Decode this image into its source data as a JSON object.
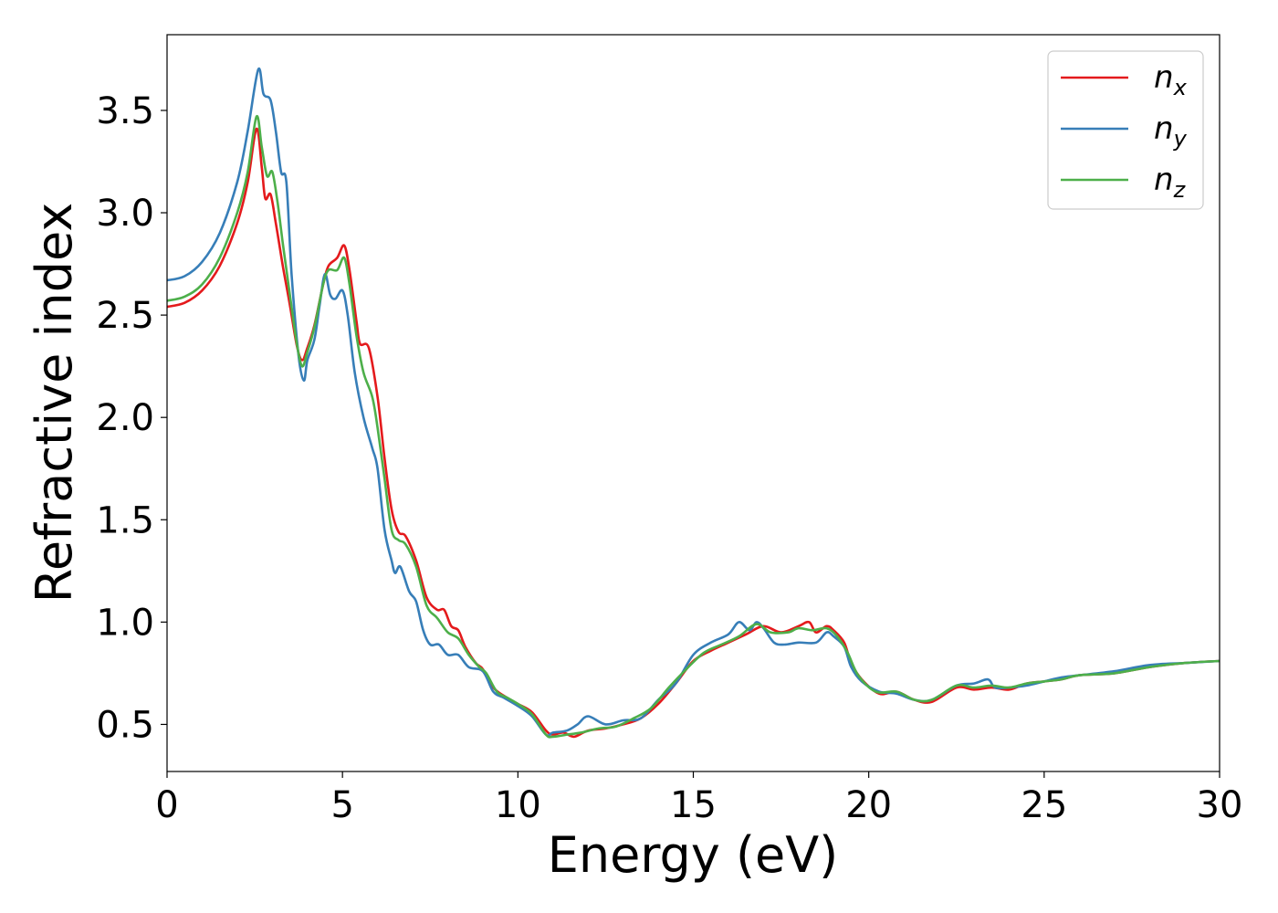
{
  "chart_data": {
    "type": "line",
    "xlabel": "Energy (eV)",
    "ylabel": "Refractive index",
    "xlim": [
      0,
      30
    ],
    "ylim": [
      0.27,
      3.87
    ],
    "xticks": [
      0,
      5,
      10,
      15,
      20,
      25,
      30
    ],
    "yticks": [
      0.5,
      1.0,
      1.5,
      2.0,
      2.5,
      3.0,
      3.5
    ],
    "xtick_labels": [
      "0",
      "5",
      "10",
      "15",
      "20",
      "25",
      "30"
    ],
    "ytick_labels": [
      "0.5",
      "1.0",
      "1.5",
      "2.0",
      "2.5",
      "3.0",
      "3.5"
    ],
    "grid": false,
    "legend_position": "top-right",
    "series": [
      {
        "name": "n_x",
        "label_base": "n",
        "label_sub": "x",
        "color": "#e41a1c",
        "points": [
          [
            0,
            2.54
          ],
          [
            0.5,
            2.56
          ],
          [
            1.0,
            2.62
          ],
          [
            1.5,
            2.74
          ],
          [
            2.0,
            2.95
          ],
          [
            2.3,
            3.15
          ],
          [
            2.55,
            3.41
          ],
          [
            2.7,
            3.22
          ],
          [
            2.8,
            3.07
          ],
          [
            2.95,
            3.09
          ],
          [
            3.1,
            2.95
          ],
          [
            3.3,
            2.74
          ],
          [
            3.5,
            2.55
          ],
          [
            3.7,
            2.35
          ],
          [
            3.85,
            2.28
          ],
          [
            4.0,
            2.34
          ],
          [
            4.2,
            2.45
          ],
          [
            4.45,
            2.65
          ],
          [
            4.6,
            2.74
          ],
          [
            4.85,
            2.78
          ],
          [
            5.05,
            2.84
          ],
          [
            5.2,
            2.72
          ],
          [
            5.4,
            2.47
          ],
          [
            5.5,
            2.36
          ],
          [
            5.75,
            2.34
          ],
          [
            6.0,
            2.1
          ],
          [
            6.2,
            1.8
          ],
          [
            6.4,
            1.55
          ],
          [
            6.6,
            1.44
          ],
          [
            6.8,
            1.42
          ],
          [
            7.1,
            1.3
          ],
          [
            7.4,
            1.12
          ],
          [
            7.7,
            1.06
          ],
          [
            7.9,
            1.06
          ],
          [
            8.1,
            0.98
          ],
          [
            8.3,
            0.96
          ],
          [
            8.5,
            0.88
          ],
          [
            8.8,
            0.8
          ],
          [
            9.0,
            0.77
          ],
          [
            9.3,
            0.68
          ],
          [
            9.6,
            0.64
          ],
          [
            10.0,
            0.6
          ],
          [
            10.4,
            0.56
          ],
          [
            10.8,
            0.47
          ],
          [
            11.0,
            0.45
          ],
          [
            11.3,
            0.46
          ],
          [
            11.6,
            0.44
          ],
          [
            12.0,
            0.47
          ],
          [
            12.5,
            0.48
          ],
          [
            13.0,
            0.5
          ],
          [
            13.5,
            0.53
          ],
          [
            14.0,
            0.6
          ],
          [
            14.5,
            0.7
          ],
          [
            15.0,
            0.81
          ],
          [
            15.5,
            0.86
          ],
          [
            16.0,
            0.9
          ],
          [
            16.5,
            0.94
          ],
          [
            17.0,
            0.98
          ],
          [
            17.5,
            0.95
          ],
          [
            18.0,
            0.98
          ],
          [
            18.3,
            1.0
          ],
          [
            18.5,
            0.95
          ],
          [
            18.8,
            0.98
          ],
          [
            19.0,
            0.96
          ],
          [
            19.3,
            0.9
          ],
          [
            19.5,
            0.8
          ],
          [
            19.8,
            0.72
          ],
          [
            20.3,
            0.65
          ],
          [
            20.8,
            0.66
          ],
          [
            21.3,
            0.62
          ],
          [
            21.8,
            0.61
          ],
          [
            22.5,
            0.68
          ],
          [
            23.0,
            0.67
          ],
          [
            23.5,
            0.68
          ],
          [
            24.0,
            0.67
          ],
          [
            24.5,
            0.7
          ],
          [
            25.0,
            0.71
          ],
          [
            25.5,
            0.72
          ],
          [
            26.0,
            0.74
          ],
          [
            27.0,
            0.75
          ],
          [
            28.0,
            0.78
          ],
          [
            29.0,
            0.8
          ],
          [
            30.0,
            0.81
          ]
        ]
      },
      {
        "name": "n_y",
        "label_base": "n",
        "label_sub": "y",
        "color": "#377eb8",
        "points": [
          [
            0,
            2.67
          ],
          [
            0.5,
            2.69
          ],
          [
            1.0,
            2.76
          ],
          [
            1.5,
            2.9
          ],
          [
            2.0,
            3.15
          ],
          [
            2.3,
            3.4
          ],
          [
            2.6,
            3.7
          ],
          [
            2.75,
            3.58
          ],
          [
            2.95,
            3.55
          ],
          [
            3.1,
            3.4
          ],
          [
            3.25,
            3.2
          ],
          [
            3.4,
            3.15
          ],
          [
            3.55,
            2.7
          ],
          [
            3.75,
            2.3
          ],
          [
            3.9,
            2.18
          ],
          [
            4.0,
            2.28
          ],
          [
            4.2,
            2.38
          ],
          [
            4.35,
            2.55
          ],
          [
            4.5,
            2.7
          ],
          [
            4.65,
            2.6
          ],
          [
            4.8,
            2.58
          ],
          [
            5.0,
            2.62
          ],
          [
            5.15,
            2.5
          ],
          [
            5.35,
            2.22
          ],
          [
            5.6,
            2.0
          ],
          [
            5.85,
            1.85
          ],
          [
            6.0,
            1.75
          ],
          [
            6.2,
            1.45
          ],
          [
            6.4,
            1.3
          ],
          [
            6.5,
            1.24
          ],
          [
            6.65,
            1.27
          ],
          [
            6.9,
            1.15
          ],
          [
            7.1,
            1.1
          ],
          [
            7.3,
            0.96
          ],
          [
            7.5,
            0.89
          ],
          [
            7.75,
            0.89
          ],
          [
            8.0,
            0.84
          ],
          [
            8.3,
            0.84
          ],
          [
            8.6,
            0.78
          ],
          [
            9.0,
            0.76
          ],
          [
            9.3,
            0.66
          ],
          [
            9.6,
            0.63
          ],
          [
            10.0,
            0.59
          ],
          [
            10.4,
            0.54
          ],
          [
            10.8,
            0.45
          ],
          [
            11.0,
            0.46
          ],
          [
            11.4,
            0.47
          ],
          [
            11.7,
            0.5
          ],
          [
            12.0,
            0.54
          ],
          [
            12.5,
            0.5
          ],
          [
            13.0,
            0.52
          ],
          [
            13.5,
            0.53
          ],
          [
            14.0,
            0.62
          ],
          [
            14.5,
            0.7
          ],
          [
            15.0,
            0.84
          ],
          [
            15.5,
            0.9
          ],
          [
            16.0,
            0.94
          ],
          [
            16.3,
            1.0
          ],
          [
            16.6,
            0.96
          ],
          [
            16.8,
            1.0
          ],
          [
            17.0,
            0.97
          ],
          [
            17.3,
            0.9
          ],
          [
            17.6,
            0.89
          ],
          [
            18.0,
            0.9
          ],
          [
            18.5,
            0.9
          ],
          [
            18.8,
            0.95
          ],
          [
            19.0,
            0.93
          ],
          [
            19.3,
            0.88
          ],
          [
            19.5,
            0.78
          ],
          [
            19.8,
            0.71
          ],
          [
            20.3,
            0.66
          ],
          [
            20.8,
            0.65
          ],
          [
            21.3,
            0.62
          ],
          [
            21.8,
            0.62
          ],
          [
            22.5,
            0.69
          ],
          [
            23.0,
            0.7
          ],
          [
            23.4,
            0.72
          ],
          [
            23.6,
            0.68
          ],
          [
            24.0,
            0.68
          ],
          [
            24.5,
            0.69
          ],
          [
            25.0,
            0.71
          ],
          [
            25.5,
            0.73
          ],
          [
            26.0,
            0.74
          ],
          [
            27.0,
            0.76
          ],
          [
            28.0,
            0.79
          ],
          [
            29.0,
            0.8
          ],
          [
            30.0,
            0.81
          ]
        ]
      },
      {
        "name": "n_z",
        "label_base": "n",
        "label_sub": "z",
        "color": "#4daf4a",
        "points": [
          [
            0,
            2.57
          ],
          [
            0.5,
            2.59
          ],
          [
            1.0,
            2.65
          ],
          [
            1.5,
            2.78
          ],
          [
            2.0,
            3.0
          ],
          [
            2.3,
            3.2
          ],
          [
            2.55,
            3.47
          ],
          [
            2.7,
            3.32
          ],
          [
            2.85,
            3.18
          ],
          [
            3.0,
            3.2
          ],
          [
            3.15,
            3.05
          ],
          [
            3.3,
            2.85
          ],
          [
            3.5,
            2.6
          ],
          [
            3.7,
            2.36
          ],
          [
            3.85,
            2.25
          ],
          [
            4.0,
            2.32
          ],
          [
            4.2,
            2.44
          ],
          [
            4.45,
            2.65
          ],
          [
            4.6,
            2.72
          ],
          [
            4.85,
            2.72
          ],
          [
            5.05,
            2.78
          ],
          [
            5.2,
            2.65
          ],
          [
            5.4,
            2.4
          ],
          [
            5.6,
            2.22
          ],
          [
            5.85,
            2.1
          ],
          [
            6.0,
            1.95
          ],
          [
            6.2,
            1.7
          ],
          [
            6.4,
            1.45
          ],
          [
            6.6,
            1.4
          ],
          [
            6.8,
            1.38
          ],
          [
            7.1,
            1.27
          ],
          [
            7.4,
            1.08
          ],
          [
            7.7,
            1.02
          ],
          [
            8.0,
            0.95
          ],
          [
            8.3,
            0.92
          ],
          [
            8.6,
            0.84
          ],
          [
            8.9,
            0.78
          ],
          [
            9.1,
            0.75
          ],
          [
            9.4,
            0.66
          ],
          [
            9.7,
            0.63
          ],
          [
            10.0,
            0.6
          ],
          [
            10.4,
            0.55
          ],
          [
            10.8,
            0.45
          ],
          [
            11.0,
            0.44
          ],
          [
            11.4,
            0.45
          ],
          [
            11.8,
            0.46
          ],
          [
            12.3,
            0.48
          ],
          [
            12.8,
            0.49
          ],
          [
            13.3,
            0.53
          ],
          [
            13.8,
            0.58
          ],
          [
            14.3,
            0.68
          ],
          [
            14.8,
            0.77
          ],
          [
            15.3,
            0.85
          ],
          [
            15.8,
            0.89
          ],
          [
            16.3,
            0.93
          ],
          [
            16.8,
            0.99
          ],
          [
            17.2,
            0.95
          ],
          [
            17.7,
            0.95
          ],
          [
            18.0,
            0.97
          ],
          [
            18.4,
            0.96
          ],
          [
            18.8,
            0.97
          ],
          [
            19.1,
            0.93
          ],
          [
            19.4,
            0.85
          ],
          [
            19.7,
            0.74
          ],
          [
            20.2,
            0.66
          ],
          [
            20.8,
            0.66
          ],
          [
            21.3,
            0.62
          ],
          [
            21.8,
            0.62
          ],
          [
            22.5,
            0.69
          ],
          [
            23.0,
            0.68
          ],
          [
            23.5,
            0.69
          ],
          [
            24.0,
            0.68
          ],
          [
            24.5,
            0.7
          ],
          [
            25.0,
            0.71
          ],
          [
            25.5,
            0.72
          ],
          [
            26.0,
            0.74
          ],
          [
            27.0,
            0.75
          ],
          [
            28.0,
            0.78
          ],
          [
            29.0,
            0.8
          ],
          [
            30.0,
            0.81
          ]
        ]
      }
    ]
  }
}
